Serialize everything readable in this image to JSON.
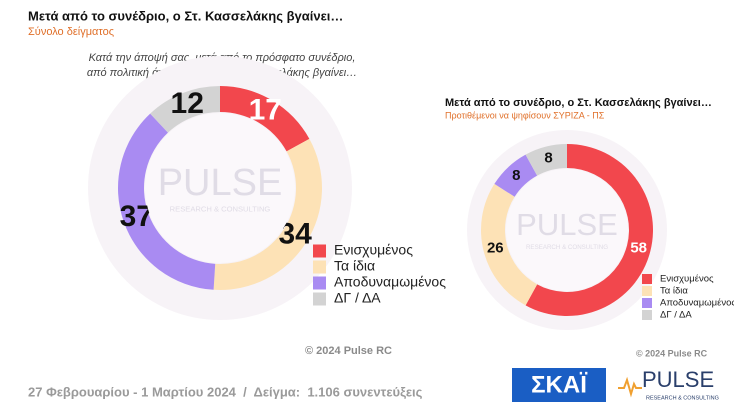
{
  "chart_data": [
    {
      "type": "pie",
      "title": "Μετά από το συνέδριο, ο Στ. Κασσελάκης βγαίνει…",
      "subtitle": "Σύνολο δείγματος",
      "question": [
        "Κατά την άποψή σας, μετά από το πρόσφατο συνέδριο,",
        "από πολιτική άποψη, ο Στέφανος Κασσελάκης βγαίνει…"
      ],
      "categories": [
        "Ενισχυμένος",
        "Τα ίδια",
        "Αποδυναμωμένος",
        "ΔΓ / ΔΑ"
      ],
      "values": [
        17,
        34,
        37,
        12
      ],
      "colors": [
        "#f2474d",
        "#fde2b6",
        "#a98bf2",
        "#d3d3d3"
      ]
    },
    {
      "type": "pie",
      "title": "Μετά από το συνέδριο, ο Στ. Κασσελάκης βγαίνει…",
      "subtitle": "Προτιθέμενοι να ψηφίσουν ΣΥΡΙΖΑ - ΠΣ",
      "categories": [
        "Ενισχυμένος",
        "Τα ίδια",
        "Αποδυναμωμένος",
        "ΔΓ / ΔΑ"
      ],
      "values": [
        58,
        26,
        8,
        8
      ],
      "colors": [
        "#f2474d",
        "#fde2b6",
        "#a98bf2",
        "#d3d3d3"
      ]
    }
  ],
  "watermark": {
    "name": "PULSE",
    "tagline": "RESEARCH & CONSULTING"
  },
  "copyright": "© 2024 Pulse RC",
  "footer": "27 Φεβρουαρίου - 1 Μαρτίου 2024  /  Δείγμα:  1.106 συνεντεύξεις",
  "logos": {
    "broadcaster": "ΣΚΑΪ",
    "pollster": "PULSE",
    "pollster_tagline": "RESEARCH & CONSULTING"
  }
}
